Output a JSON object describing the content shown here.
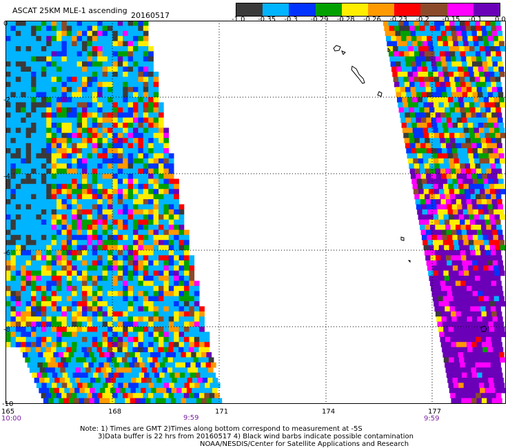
{
  "header": {
    "title": "ASCAT 25KM MLE-1 ascending",
    "date": "20160517"
  },
  "legend": {
    "labels": [
      "-1.0",
      "-0.35",
      "-0.3",
      "-0.29",
      "-0.28",
      "-0.26",
      "-0.23",
      "-0.2",
      "-0.15",
      "-0.1",
      "0.0"
    ],
    "colors": [
      "#3a3a3a",
      "#00b4ff",
      "#0033ff",
      "#00a000",
      "#ffee00",
      "#ff9900",
      "#ff0000",
      "#8b4a2a",
      "#ff00ff",
      "#6a00b8"
    ]
  },
  "axes": {
    "lat_ticks": [
      "0",
      "-2",
      "-4",
      "-6",
      "-8",
      "-10"
    ],
    "lon_ticks": [
      "165",
      "168",
      "171",
      "174",
      "177"
    ],
    "time_left": "10:00",
    "time_mid": "9:59",
    "time_right": "9:59"
  },
  "notes": {
    "line1": "Note: 1) Times are GMT 2)Times along bottom correspond to measurement at -5S",
    "line2": "3)Data buffer is 22 hrs from 20160517 4) Black wind barbs indicate possible contamination",
    "line3": "NOAA/NESDIS/Center for Satellite Applications and Research"
  }
}
